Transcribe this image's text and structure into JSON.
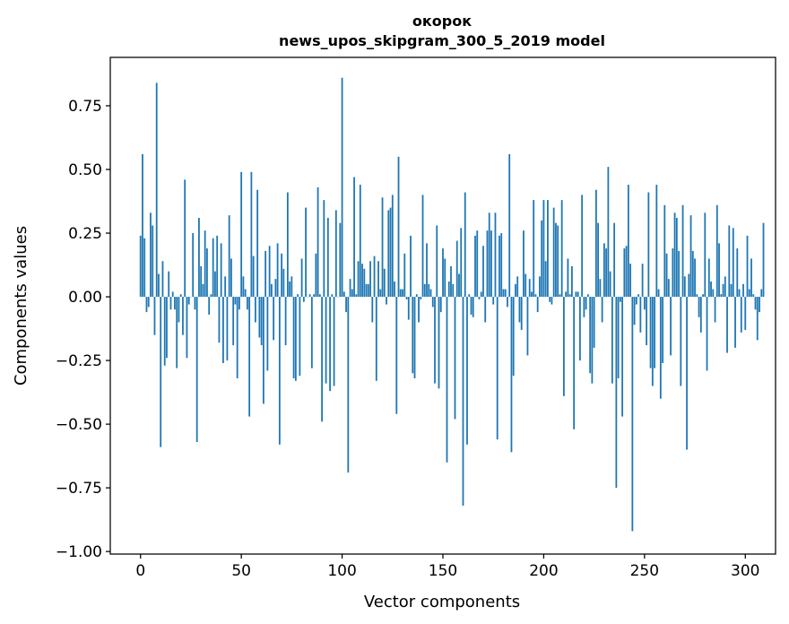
{
  "chart_data": {
    "type": "bar",
    "title_line1": "окорок",
    "title_line2": "news_upos_skipgram_300_5_2019 model",
    "xlabel": "Vector components",
    "ylabel": "Components values",
    "xlim": [
      -15,
      315
    ],
    "ylim": [
      -1.01,
      0.94
    ],
    "x_ticks": [
      0,
      50,
      100,
      150,
      200,
      250,
      300
    ],
    "x_tick_labels": [
      "0",
      "50",
      "100",
      "150",
      "200",
      "250",
      "300"
    ],
    "y_ticks": [
      0.75,
      0.5,
      0.25,
      0.0,
      -0.25,
      -0.5,
      -0.75,
      -1.0
    ],
    "y_tick_labels": [
      "0.75",
      "0.50",
      "0.25",
      "0.00",
      "−0.25",
      "−0.50",
      "−0.75",
      "−1.00"
    ],
    "bar_color": "#1f77b4",
    "series": [
      {
        "name": "окорок",
        "values": [
          0.24,
          0.56,
          0.23,
          -0.06,
          -0.04,
          0.33,
          0.28,
          -0.15,
          0.84,
          0.09,
          -0.59,
          0.14,
          -0.27,
          -0.24,
          0.1,
          -0.05,
          0.02,
          -0.05,
          -0.28,
          -0.1,
          0.01,
          -0.15,
          0.46,
          -0.24,
          -0.03,
          0.0,
          0.25,
          -0.05,
          -0.57,
          0.31,
          0.12,
          0.05,
          0.26,
          0.19,
          -0.07,
          0.01,
          0.23,
          0.1,
          0.24,
          -0.18,
          0.21,
          -0.26,
          0.08,
          -0.25,
          0.32,
          0.15,
          -0.19,
          -0.03,
          -0.32,
          -0.05,
          0.49,
          0.08,
          0.03,
          -0.05,
          -0.47,
          0.49,
          0.16,
          -0.1,
          0.42,
          -0.16,
          -0.19,
          -0.42,
          0.18,
          -0.29,
          0.2,
          0.05,
          -0.17,
          0.07,
          0.21,
          -0.58,
          0.17,
          0.11,
          -0.19,
          0.41,
          0.06,
          0.08,
          -0.32,
          -0.33,
          0.01,
          -0.31,
          0.15,
          -0.02,
          0.35,
          0.0,
          0.01,
          -0.28,
          0.01,
          0.17,
          0.43,
          0.01,
          -0.49,
          0.38,
          -0.34,
          0.31,
          -0.37,
          0.01,
          -0.35,
          0.34,
          0.0,
          0.29,
          0.86,
          0.02,
          -0.06,
          -0.69,
          0.07,
          0.03,
          0.47,
          0.01,
          0.14,
          0.44,
          0.13,
          0.11,
          0.05,
          0.05,
          0.14,
          -0.1,
          0.16,
          -0.33,
          0.14,
          0.03,
          0.39,
          0.11,
          -0.03,
          0.34,
          0.35,
          0.4,
          0.06,
          -0.46,
          0.55,
          0.03,
          0.03,
          0.17,
          -0.01,
          -0.09,
          0.24,
          -0.3,
          -0.32,
          0.01,
          -0.1,
          -0.01,
          0.4,
          0.05,
          0.21,
          0.05,
          0.03,
          -0.04,
          -0.34,
          0.28,
          -0.36,
          -0.06,
          0.19,
          0.15,
          -0.65,
          0.06,
          0.12,
          0.05,
          -0.48,
          0.22,
          0.09,
          0.27,
          -0.82,
          0.41,
          -0.58,
          0.01,
          -0.07,
          -0.08,
          0.24,
          0.26,
          -0.01,
          0.02,
          0.2,
          -0.1,
          0.26,
          0.33,
          0.26,
          -0.03,
          0.33,
          -0.56,
          0.24,
          0.25,
          0.03,
          0.03,
          -0.04,
          0.56,
          -0.61,
          -0.31,
          0.05,
          0.08,
          -0.1,
          -0.13,
          0.26,
          0.09,
          -0.23,
          0.07,
          0.02,
          0.38,
          0.01,
          -0.06,
          0.08,
          0.3,
          0.38,
          0.14,
          0.38,
          -0.02,
          -0.03,
          0.35,
          0.29,
          0.28,
          0.01,
          0.38,
          -0.39,
          0.02,
          0.15,
          0.01,
          0.12,
          -0.52,
          0.02,
          0.02,
          -0.25,
          0.4,
          -0.08,
          -0.05,
          0.01,
          -0.3,
          -0.34,
          -0.2,
          0.42,
          0.29,
          0.07,
          -0.1,
          0.21,
          0.19,
          0.51,
          0.1,
          -0.34,
          0.29,
          -0.75,
          -0.32,
          -0.02,
          -0.47,
          0.19,
          0.2,
          0.44,
          0.13,
          -0.92,
          -0.11,
          -0.03,
          0.01,
          -0.14,
          0.13,
          -0.05,
          -0.19,
          0.41,
          -0.28,
          -0.35,
          -0.28,
          0.44,
          0.03,
          -0.4,
          -0.26,
          0.36,
          0.17,
          0.07,
          -0.23,
          0.19,
          0.33,
          0.31,
          0.18,
          -0.35,
          0.36,
          0.08,
          -0.6,
          0.09,
          0.32,
          0.18,
          0.15,
          0.01,
          -0.08,
          -0.14,
          0.01,
          0.33,
          -0.29,
          0.15,
          0.06,
          0.03,
          -0.1,
          0.36,
          0.21,
          0.01,
          0.05,
          0.08,
          -0.22,
          0.28,
          0.05,
          0.27,
          -0.2,
          0.19,
          0.03,
          -0.14,
          0.05,
          -0.13,
          0.24,
          0.03,
          0.15,
          0.01,
          -0.05,
          -0.17,
          -0.06,
          0.03,
          0.29
        ]
      }
    ]
  }
}
